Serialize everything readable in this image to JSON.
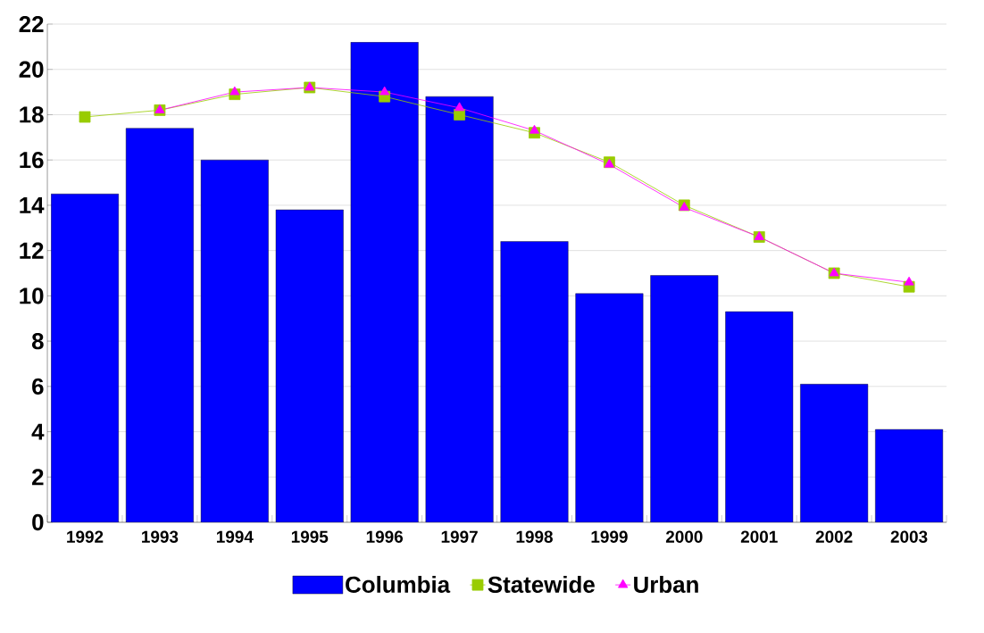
{
  "chart_data": {
    "type": "bar",
    "categories": [
      "1992",
      "1993",
      "1994",
      "1995",
      "1996",
      "1997",
      "1998",
      "1999",
      "2000",
      "2001",
      "2002",
      "2003"
    ],
    "series": [
      {
        "name": "Columbia",
        "type": "bar",
        "color": "#0000ff",
        "values": [
          14.5,
          17.4,
          16.0,
          13.8,
          21.2,
          18.8,
          12.4,
          10.1,
          10.9,
          9.3,
          6.1,
          4.1
        ]
      },
      {
        "name": "Statewide",
        "type": "line",
        "color": "#99cc00",
        "marker": "square",
        "values": [
          17.9,
          18.2,
          18.9,
          19.2,
          18.8,
          18.0,
          17.2,
          15.9,
          14.0,
          12.6,
          11.0,
          10.4
        ]
      },
      {
        "name": "Urban",
        "type": "line",
        "color": "#ff00ff",
        "marker": "triangle",
        "values": [
          null,
          18.2,
          19.0,
          19.2,
          19.0,
          18.3,
          17.3,
          15.8,
          13.9,
          12.6,
          11.0,
          10.6
        ]
      }
    ],
    "ylim": [
      0,
      22
    ],
    "yticks": [
      0,
      2,
      4,
      6,
      8,
      10,
      12,
      14,
      16,
      18,
      20,
      22
    ],
    "grid": "y",
    "legend": "bottom"
  }
}
